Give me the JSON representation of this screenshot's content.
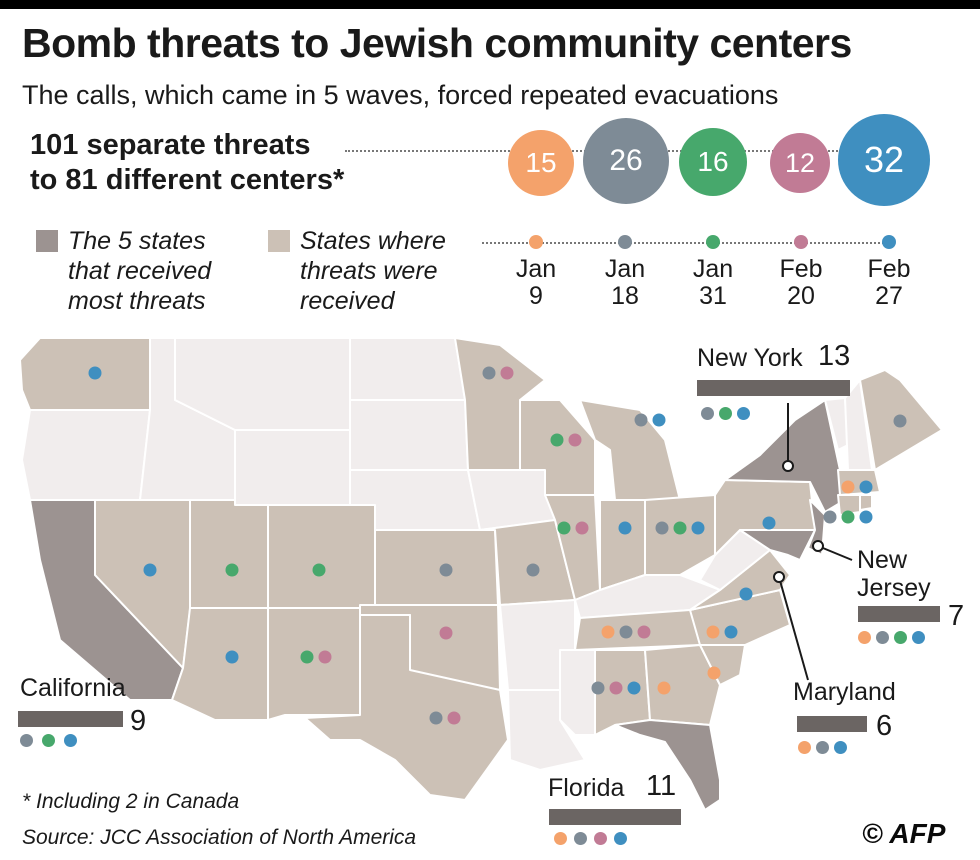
{
  "title": "Bomb threats to Jewish community centers",
  "subtitle": "The calls, which came in 5 waves, forced repeated evacuations",
  "total": {
    "line1": "101 separate threats",
    "line2": "to 81 different centers*"
  },
  "colors": {
    "wave1": "#f4a26b",
    "wave2": "#7e8b96",
    "wave3": "#47a86c",
    "wave4": "#c17b95",
    "wave5": "#3f8fc0",
    "top_state": "#9c9391",
    "threat_state": "#ccc1b6",
    "other_state": "#f1eded",
    "border": "#ffffff"
  },
  "waves": [
    {
      "count": "15",
      "date_line1": "Jan",
      "date_line2": "9",
      "color": "#f4a26b"
    },
    {
      "count": "26",
      "date_line1": "Jan",
      "date_line2": "18",
      "color": "#7e8b96"
    },
    {
      "count": "16",
      "date_line1": "Jan",
      "date_line2": "31",
      "color": "#47a86c"
    },
    {
      "count": "12",
      "date_line1": "Feb",
      "date_line2": "20",
      "color": "#c17b95"
    },
    {
      "count": "32",
      "date_line1": "Feb",
      "date_line2": "27",
      "color": "#3f8fc0"
    }
  ],
  "legend": {
    "top_states": {
      "line1": "The 5 states",
      "line2": "that received",
      "line3": "most threats"
    },
    "threat_states": {
      "line1": "States where",
      "line2": "threats were",
      "line3": "received"
    }
  },
  "callouts": [
    {
      "name": "New York",
      "count": "13",
      "waves": [
        "wave2",
        "wave3",
        "wave5"
      ]
    },
    {
      "name_line1": "New",
      "name_line2": "Jersey",
      "count": "7",
      "waves": [
        "wave1",
        "wave2",
        "wave3",
        "wave5"
      ]
    },
    {
      "name": "Maryland",
      "count": "6",
      "waves": [
        "wave1",
        "wave2",
        "wave5"
      ]
    },
    {
      "name": "California",
      "count": "9",
      "waves": [
        "wave2",
        "wave3",
        "wave5"
      ]
    },
    {
      "name": "Florida",
      "count": "11",
      "waves": [
        "wave1",
        "wave2",
        "wave4",
        "wave5"
      ]
    }
  ],
  "footnote": "* Including 2 in Canada",
  "source": "Source: JCC Association of North America",
  "credit": "© AFP"
}
